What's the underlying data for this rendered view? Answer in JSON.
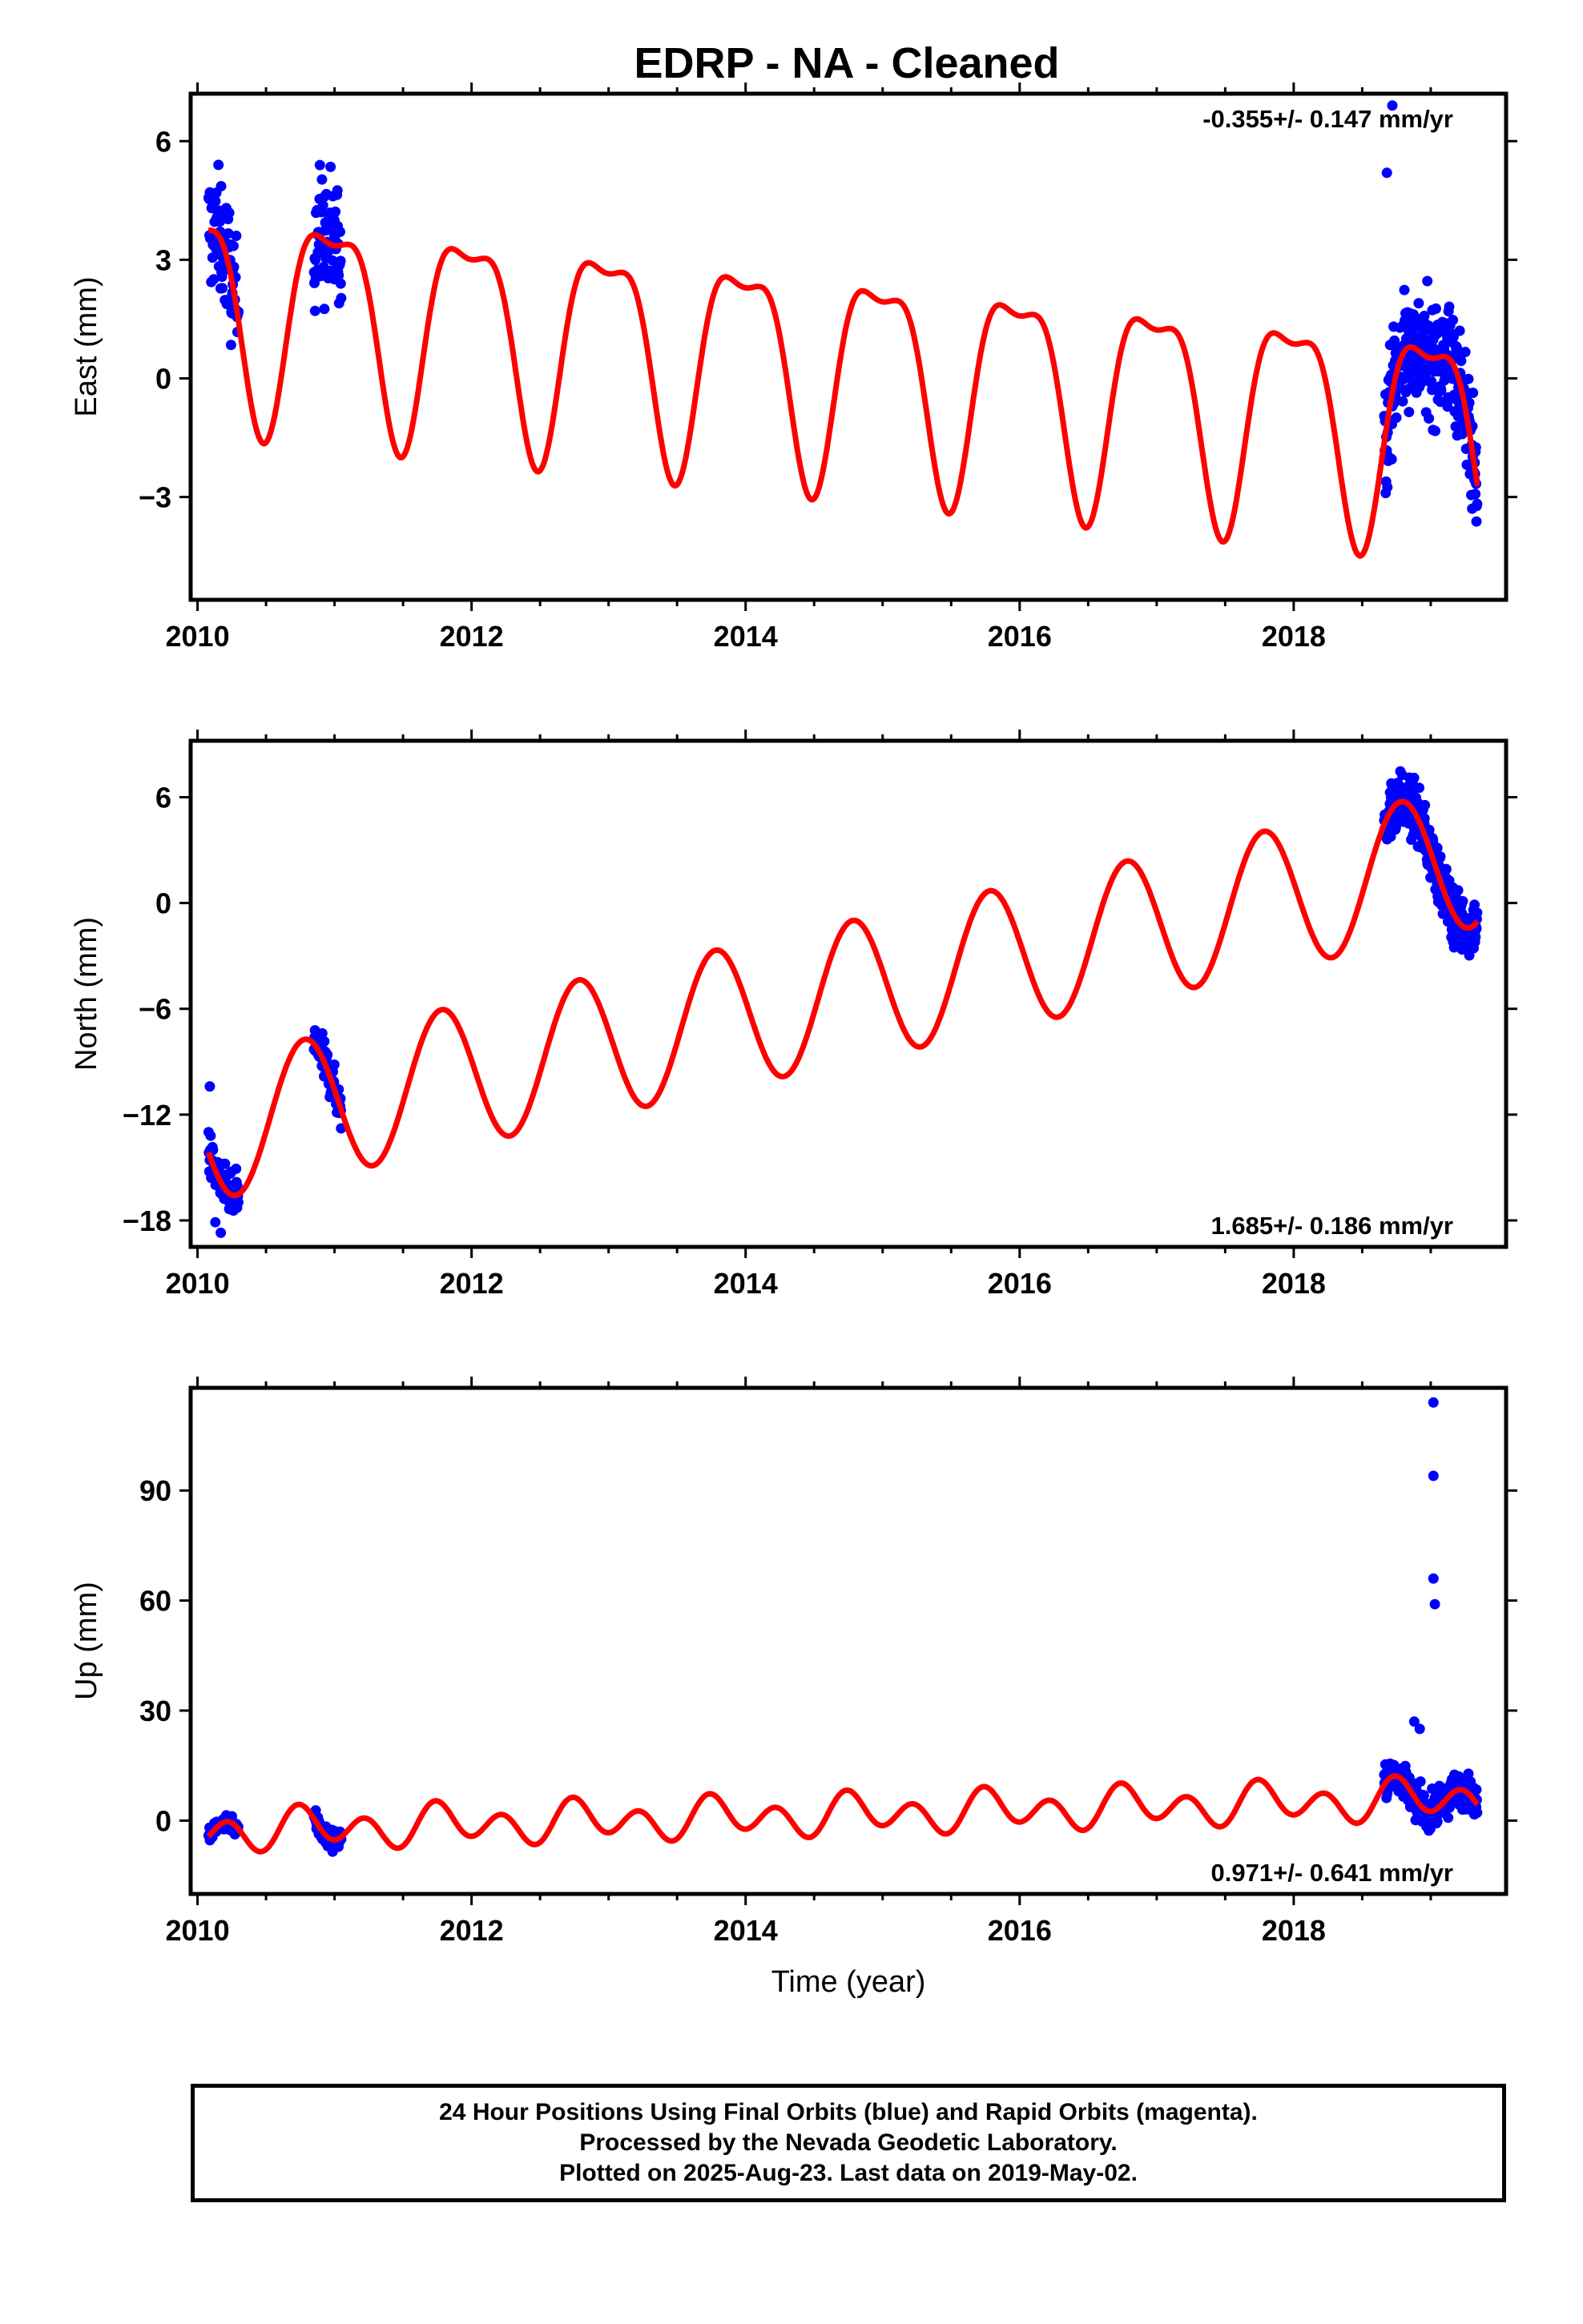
{
  "title": "EDRP  - NA - Cleaned",
  "footer": {
    "line1": "24 Hour Positions Using Final Orbits (blue) and Rapid Orbits (magenta).",
    "line2": "Processed by the Nevada Geodetic Laboratory.",
    "line3": "Plotted on 2025-Aug-23. Last data on 2019-May-02."
  },
  "colors": {
    "points": "#0000ff",
    "model": "#ff0000",
    "frame": "#000000"
  },
  "chart_data": [
    {
      "type": "scatter",
      "name": "East",
      "ylabel": "East (mm)",
      "xlabel": "",
      "xlim": [
        2009.95,
        2019.55
      ],
      "ylim": [
        -5.6,
        7.2
      ],
      "xticks": [
        2010,
        2012,
        2014,
        2016,
        2018
      ],
      "yticks": [
        -3,
        0,
        3,
        6
      ],
      "ytick_labels": [
        "−3",
        "0",
        "3",
        "6"
      ],
      "rate_label": "-0.355+/- 0.147 mm/yr",
      "rate_position": "top-right",
      "model": {
        "offset": 2.02,
        "trend": -0.355,
        "annual_amp": 2.6,
        "annual_phase": 1.7,
        "semi_amp": 0.9,
        "semi_phase": -1.4
      },
      "segments": [
        {
          "start": 2010.08,
          "end": 2010.3,
          "count": 70,
          "spread": 1.4
        },
        {
          "start": 2010.85,
          "end": 2011.05,
          "count": 80,
          "spread": 1.5
        },
        {
          "start": 2018.66,
          "end": 2019.34,
          "count": 300,
          "spread": 1.3
        }
      ],
      "outliers": [
        [
          2018.72,
          6.9
        ],
        [
          2018.68,
          5.2
        ]
      ]
    },
    {
      "type": "scatter",
      "name": "North",
      "ylabel": "North (mm)",
      "xlabel": "",
      "xlim": [
        2009.95,
        2019.55
      ],
      "ylim": [
        -19.5,
        9.2
      ],
      "xticks": [
        2010,
        2012,
        2014,
        2016,
        2018
      ],
      "yticks": [
        -18,
        -12,
        -6,
        0,
        6
      ],
      "ytick_labels": [
        "−18",
        "−12",
        "−6",
        "0",
        "6"
      ],
      "rate_label": "1.685+/- 0.186 mm/yr",
      "rate_position": "bottom-right",
      "model": {
        "offset": -13.05,
        "trend": 1.685,
        "annual_amp": 4.0,
        "annual_phase": 2.95,
        "semi_amp": 0.0,
        "semi_phase": 0.0
      },
      "segments": [
        {
          "start": 2010.08,
          "end": 2010.3,
          "count": 70,
          "spread": 1.1
        },
        {
          "start": 2010.85,
          "end": 2011.05,
          "count": 80,
          "spread": 1.0
        },
        {
          "start": 2018.66,
          "end": 2019.34,
          "count": 300,
          "spread": 1.4
        }
      ],
      "outliers": [
        [
          2010.13,
          -18.1
        ],
        [
          2010.17,
          -18.7
        ],
        [
          2010.09,
          -10.4
        ]
      ]
    },
    {
      "type": "scatter",
      "name": "Up",
      "ylabel": "Up (mm)",
      "xlabel": "Time (year)",
      "xlim": [
        2009.95,
        2019.55
      ],
      "ylim": [
        -20,
        118
      ],
      "xticks": [
        2010,
        2012,
        2014,
        2016,
        2018
      ],
      "yticks": [
        0,
        30,
        60,
        90
      ],
      "ytick_labels": [
        "0",
        "30",
        "60",
        "90"
      ],
      "rate_label": "0.971+/- 0.641 mm/yr",
      "rate_position": "bottom-right",
      "model": {
        "offset": -2.95,
        "trend": 0.971,
        "annual_amp": 2.5,
        "annual_phase": 2.7,
        "semi_amp": 4.5,
        "semi_phase": -1.3
      },
      "segments": [
        {
          "start": 2010.08,
          "end": 2010.3,
          "count": 70,
          "spread": 2.2
        },
        {
          "start": 2010.85,
          "end": 2011.05,
          "count": 80,
          "spread": 2.8
        },
        {
          "start": 2018.66,
          "end": 2019.34,
          "count": 300,
          "spread": 4.0
        }
      ],
      "outliers": [
        [
          2019.02,
          114
        ],
        [
          2019.02,
          94
        ],
        [
          2019.02,
          66
        ],
        [
          2019.03,
          59
        ],
        [
          2018.88,
          27
        ],
        [
          2018.92,
          25
        ]
      ]
    }
  ]
}
